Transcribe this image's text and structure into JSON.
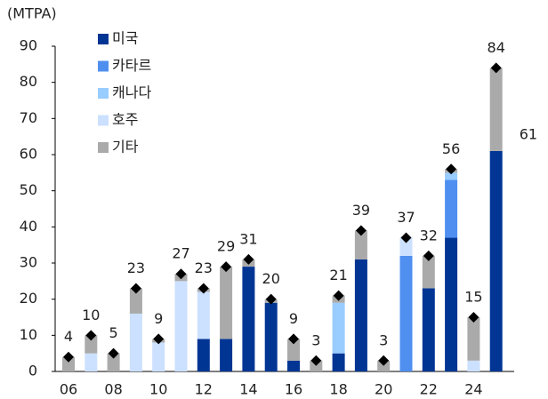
{
  "chart_data": {
    "type": "bar",
    "stacked": true,
    "unit": "(MTPA)",
    "categories": [
      "06",
      null,
      "08",
      null,
      "10",
      null,
      "12",
      null,
      "14",
      null,
      "16",
      null,
      "18",
      null,
      "20",
      null,
      "22",
      null,
      "24",
      null
    ],
    "series": [
      {
        "name": "미국",
        "color": "#003594",
        "values": [
          0,
          0,
          0,
          0,
          0,
          0,
          9,
          9,
          29,
          19,
          3,
          0,
          5,
          31,
          0,
          0,
          23,
          37,
          0,
          61
        ]
      },
      {
        "name": "카타르",
        "color": "#4f8ff0",
        "values": [
          0,
          0,
          0,
          0,
          0,
          0,
          0,
          0,
          0,
          0,
          0,
          0,
          0,
          0,
          0,
          32,
          0,
          16,
          0,
          0
        ]
      },
      {
        "name": "캐나다",
        "color": "#99ccff",
        "values": [
          0,
          0,
          0,
          0,
          0,
          0,
          0,
          0,
          0,
          0,
          0,
          0,
          14,
          0,
          0,
          0,
          0,
          2,
          0,
          0
        ]
      },
      {
        "name": "호주",
        "color": "#cce0ff",
        "values": [
          0,
          5,
          0,
          16,
          8,
          25,
          13,
          0,
          0,
          0,
          0,
          0,
          0,
          0,
          0,
          5,
          0,
          0,
          3,
          0
        ]
      },
      {
        "name": "기타",
        "color": "#aaaaaa",
        "values": [
          4,
          5,
          5,
          7,
          1,
          2,
          1,
          20,
          2,
          1,
          6,
          3,
          2,
          8,
          3,
          0,
          9,
          1,
          12,
          23
        ]
      }
    ],
    "totals": [
      4,
      10,
      5,
      23,
      9,
      27,
      23,
      29,
      31,
      20,
      9,
      3,
      21,
      39,
      3,
      37,
      32,
      56,
      15,
      84
    ],
    "total_marker_color": "#000000",
    "ylim": [
      0,
      90
    ],
    "yticks": [
      0,
      10,
      20,
      30,
      40,
      50,
      60,
      70,
      80,
      90
    ],
    "grid": false
  }
}
